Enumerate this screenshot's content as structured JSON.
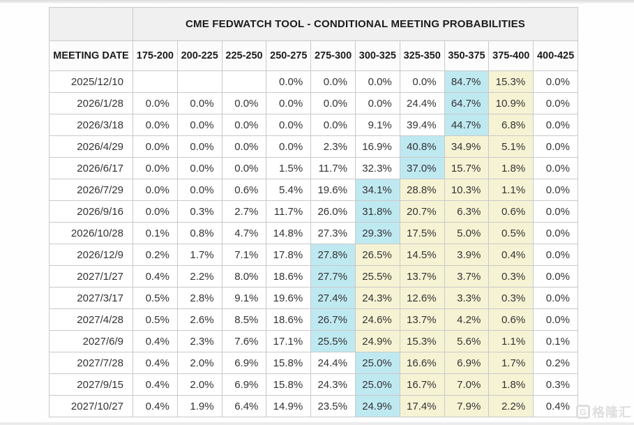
{
  "watermark": {
    "logo_letter": "G",
    "text": "格隆汇"
  },
  "chart_data": {
    "type": "table",
    "title": "CME FEDWATCH TOOL - CONDITIONAL MEETING PROBABILITIES",
    "date_header": "MEETING DATE",
    "rate_range_headers": [
      "175-200",
      "200-225",
      "225-250",
      "250-275",
      "275-300",
      "300-325",
      "325-350",
      "350-375",
      "375-400",
      "400-425"
    ],
    "colors": {
      "highlight_max": "#bfe9f1",
      "highlight_tail": "#f6f3d4",
      "header_bg": "#f0f0f0",
      "border": "#c9c9c9"
    },
    "highlight_legend": {
      "c": "cyan (highest probability in row)",
      "y": "pale yellow",
      "w": "white"
    },
    "rows": [
      {
        "date": "2025/12/10",
        "values": [
          "",
          "",
          "",
          "0.0%",
          "0.0%",
          "0.0%",
          "0.0%",
          "84.7%",
          "15.3%",
          "0.0%"
        ],
        "highlight": [
          "w",
          "w",
          "w",
          "w",
          "w",
          "w",
          "w",
          "c",
          "y",
          "w"
        ]
      },
      {
        "date": "2026/1/28",
        "values": [
          "0.0%",
          "0.0%",
          "0.0%",
          "0.0%",
          "0.0%",
          "0.0%",
          "24.4%",
          "64.7%",
          "10.9%",
          "0.0%"
        ],
        "highlight": [
          "w",
          "w",
          "w",
          "w",
          "w",
          "w",
          "w",
          "c",
          "y",
          "w"
        ]
      },
      {
        "date": "2026/3/18",
        "values": [
          "0.0%",
          "0.0%",
          "0.0%",
          "0.0%",
          "0.0%",
          "9.1%",
          "39.4%",
          "44.7%",
          "6.8%",
          "0.0%"
        ],
        "highlight": [
          "w",
          "w",
          "w",
          "w",
          "w",
          "w",
          "w",
          "c",
          "y",
          "w"
        ]
      },
      {
        "date": "2026/4/29",
        "values": [
          "0.0%",
          "0.0%",
          "0.0%",
          "0.0%",
          "2.3%",
          "16.9%",
          "40.8%",
          "34.9%",
          "5.1%",
          "0.0%"
        ],
        "highlight": [
          "w",
          "w",
          "w",
          "w",
          "w",
          "w",
          "c",
          "y",
          "y",
          "w"
        ]
      },
      {
        "date": "2026/6/17",
        "values": [
          "0.0%",
          "0.0%",
          "0.0%",
          "1.5%",
          "11.7%",
          "32.3%",
          "37.0%",
          "15.7%",
          "1.8%",
          "0.0%"
        ],
        "highlight": [
          "w",
          "w",
          "w",
          "w",
          "w",
          "w",
          "c",
          "y",
          "y",
          "w"
        ]
      },
      {
        "date": "2026/7/29",
        "values": [
          "0.0%",
          "0.0%",
          "0.6%",
          "5.4%",
          "19.6%",
          "34.1%",
          "28.8%",
          "10.3%",
          "1.1%",
          "0.0%"
        ],
        "highlight": [
          "w",
          "w",
          "w",
          "w",
          "w",
          "c",
          "y",
          "y",
          "y",
          "w"
        ]
      },
      {
        "date": "2026/9/16",
        "values": [
          "0.0%",
          "0.3%",
          "2.7%",
          "11.7%",
          "26.0%",
          "31.8%",
          "20.7%",
          "6.3%",
          "0.6%",
          "0.0%"
        ],
        "highlight": [
          "w",
          "w",
          "w",
          "w",
          "w",
          "c",
          "y",
          "y",
          "y",
          "w"
        ]
      },
      {
        "date": "2026/10/28",
        "values": [
          "0.1%",
          "0.8%",
          "4.7%",
          "14.8%",
          "27.3%",
          "29.3%",
          "17.5%",
          "5.0%",
          "0.5%",
          "0.0%"
        ],
        "highlight": [
          "w",
          "w",
          "w",
          "w",
          "w",
          "c",
          "y",
          "y",
          "y",
          "w"
        ]
      },
      {
        "date": "2026/12/9",
        "values": [
          "0.2%",
          "1.7%",
          "7.1%",
          "17.8%",
          "27.8%",
          "26.5%",
          "14.5%",
          "3.9%",
          "0.4%",
          "0.0%"
        ],
        "highlight": [
          "w",
          "w",
          "w",
          "w",
          "c",
          "y",
          "y",
          "y",
          "y",
          "w"
        ]
      },
      {
        "date": "2027/1/27",
        "values": [
          "0.4%",
          "2.2%",
          "8.0%",
          "18.6%",
          "27.7%",
          "25.5%",
          "13.7%",
          "3.7%",
          "0.3%",
          "0.0%"
        ],
        "highlight": [
          "w",
          "w",
          "w",
          "w",
          "c",
          "y",
          "y",
          "y",
          "y",
          "w"
        ]
      },
      {
        "date": "2027/3/17",
        "values": [
          "0.5%",
          "2.8%",
          "9.1%",
          "19.6%",
          "27.4%",
          "24.3%",
          "12.6%",
          "3.3%",
          "0.3%",
          "0.0%"
        ],
        "highlight": [
          "w",
          "w",
          "w",
          "w",
          "c",
          "y",
          "y",
          "y",
          "y",
          "w"
        ]
      },
      {
        "date": "2027/4/28",
        "values": [
          "0.5%",
          "2.6%",
          "8.5%",
          "18.6%",
          "26.7%",
          "24.6%",
          "13.7%",
          "4.2%",
          "0.6%",
          "0.0%"
        ],
        "highlight": [
          "w",
          "w",
          "w",
          "w",
          "c",
          "y",
          "y",
          "y",
          "y",
          "w"
        ]
      },
      {
        "date": "2027/6/9",
        "values": [
          "0.4%",
          "2.3%",
          "7.6%",
          "17.1%",
          "25.5%",
          "24.9%",
          "15.3%",
          "5.6%",
          "1.1%",
          "0.1%"
        ],
        "highlight": [
          "w",
          "w",
          "w",
          "w",
          "c",
          "y",
          "y",
          "y",
          "y",
          "w"
        ]
      },
      {
        "date": "2027/7/28",
        "values": [
          "0.4%",
          "2.0%",
          "6.9%",
          "15.8%",
          "24.4%",
          "25.0%",
          "16.6%",
          "6.9%",
          "1.7%",
          "0.2%"
        ],
        "highlight": [
          "w",
          "w",
          "w",
          "w",
          "w",
          "c",
          "y",
          "y",
          "y",
          "w"
        ]
      },
      {
        "date": "2027/9/15",
        "values": [
          "0.4%",
          "2.0%",
          "6.9%",
          "15.8%",
          "24.3%",
          "25.0%",
          "16.7%",
          "7.0%",
          "1.8%",
          "0.3%"
        ],
        "highlight": [
          "w",
          "w",
          "w",
          "w",
          "w",
          "c",
          "y",
          "y",
          "y",
          "w"
        ]
      },
      {
        "date": "2027/10/27",
        "values": [
          "0.4%",
          "1.9%",
          "6.4%",
          "14.9%",
          "23.5%",
          "24.9%",
          "17.4%",
          "7.9%",
          "2.2%",
          "0.4%"
        ],
        "highlight": [
          "w",
          "w",
          "w",
          "w",
          "w",
          "c",
          "y",
          "y",
          "y",
          "w"
        ]
      }
    ]
  }
}
